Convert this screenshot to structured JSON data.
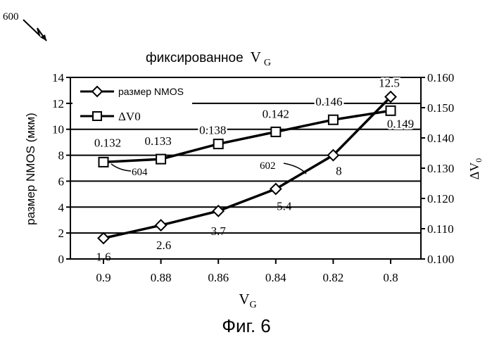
{
  "figure_number": "600",
  "caption": "Фиг. 6",
  "chart_data": {
    "type": "line",
    "title": "фиксированное V_G",
    "title_prefix": "фиксированное",
    "title_var": "V",
    "title_sub": "G",
    "xlabel_var": "V",
    "xlabel_sub": "G",
    "ylabel_left": "размер NMOS (мкм)",
    "ylabel_right_var": "ΔV",
    "ylabel_right_sub": "0",
    "categories": [
      "0.9",
      "0.88",
      "0.86",
      "0.84",
      "0.82",
      "0.8"
    ],
    "ylim_left": [
      0,
      14
    ],
    "yticks_left": [
      "0",
      "2",
      "4",
      "6",
      "8",
      "10",
      "12",
      "14"
    ],
    "ylim_right": [
      0.1,
      0.16
    ],
    "yticks_right": [
      "0.100",
      "0.110",
      "0.120",
      "0.130",
      "0.140",
      "0.150",
      "0.160"
    ],
    "grid": true,
    "legend_position": "top-left",
    "series": [
      {
        "name": "размер NMOS",
        "axis": "left",
        "marker": "diamond",
        "values": [
          1.6,
          2.6,
          3.7,
          5.4,
          8,
          12.5
        ],
        "labels": [
          "1.6",
          "2.6",
          "3.7",
          "5.4",
          "8",
          "12.5"
        ],
        "reference": "602"
      },
      {
        "name": "ΔV0",
        "axis": "right",
        "marker": "square",
        "values": [
          0.132,
          0.133,
          0.138,
          0.142,
          0.146,
          0.149
        ],
        "labels": [
          "0.132",
          "0.133",
          "0.138",
          "0.142",
          "0.146",
          "0.149"
        ],
        "reference": "604"
      }
    ]
  }
}
